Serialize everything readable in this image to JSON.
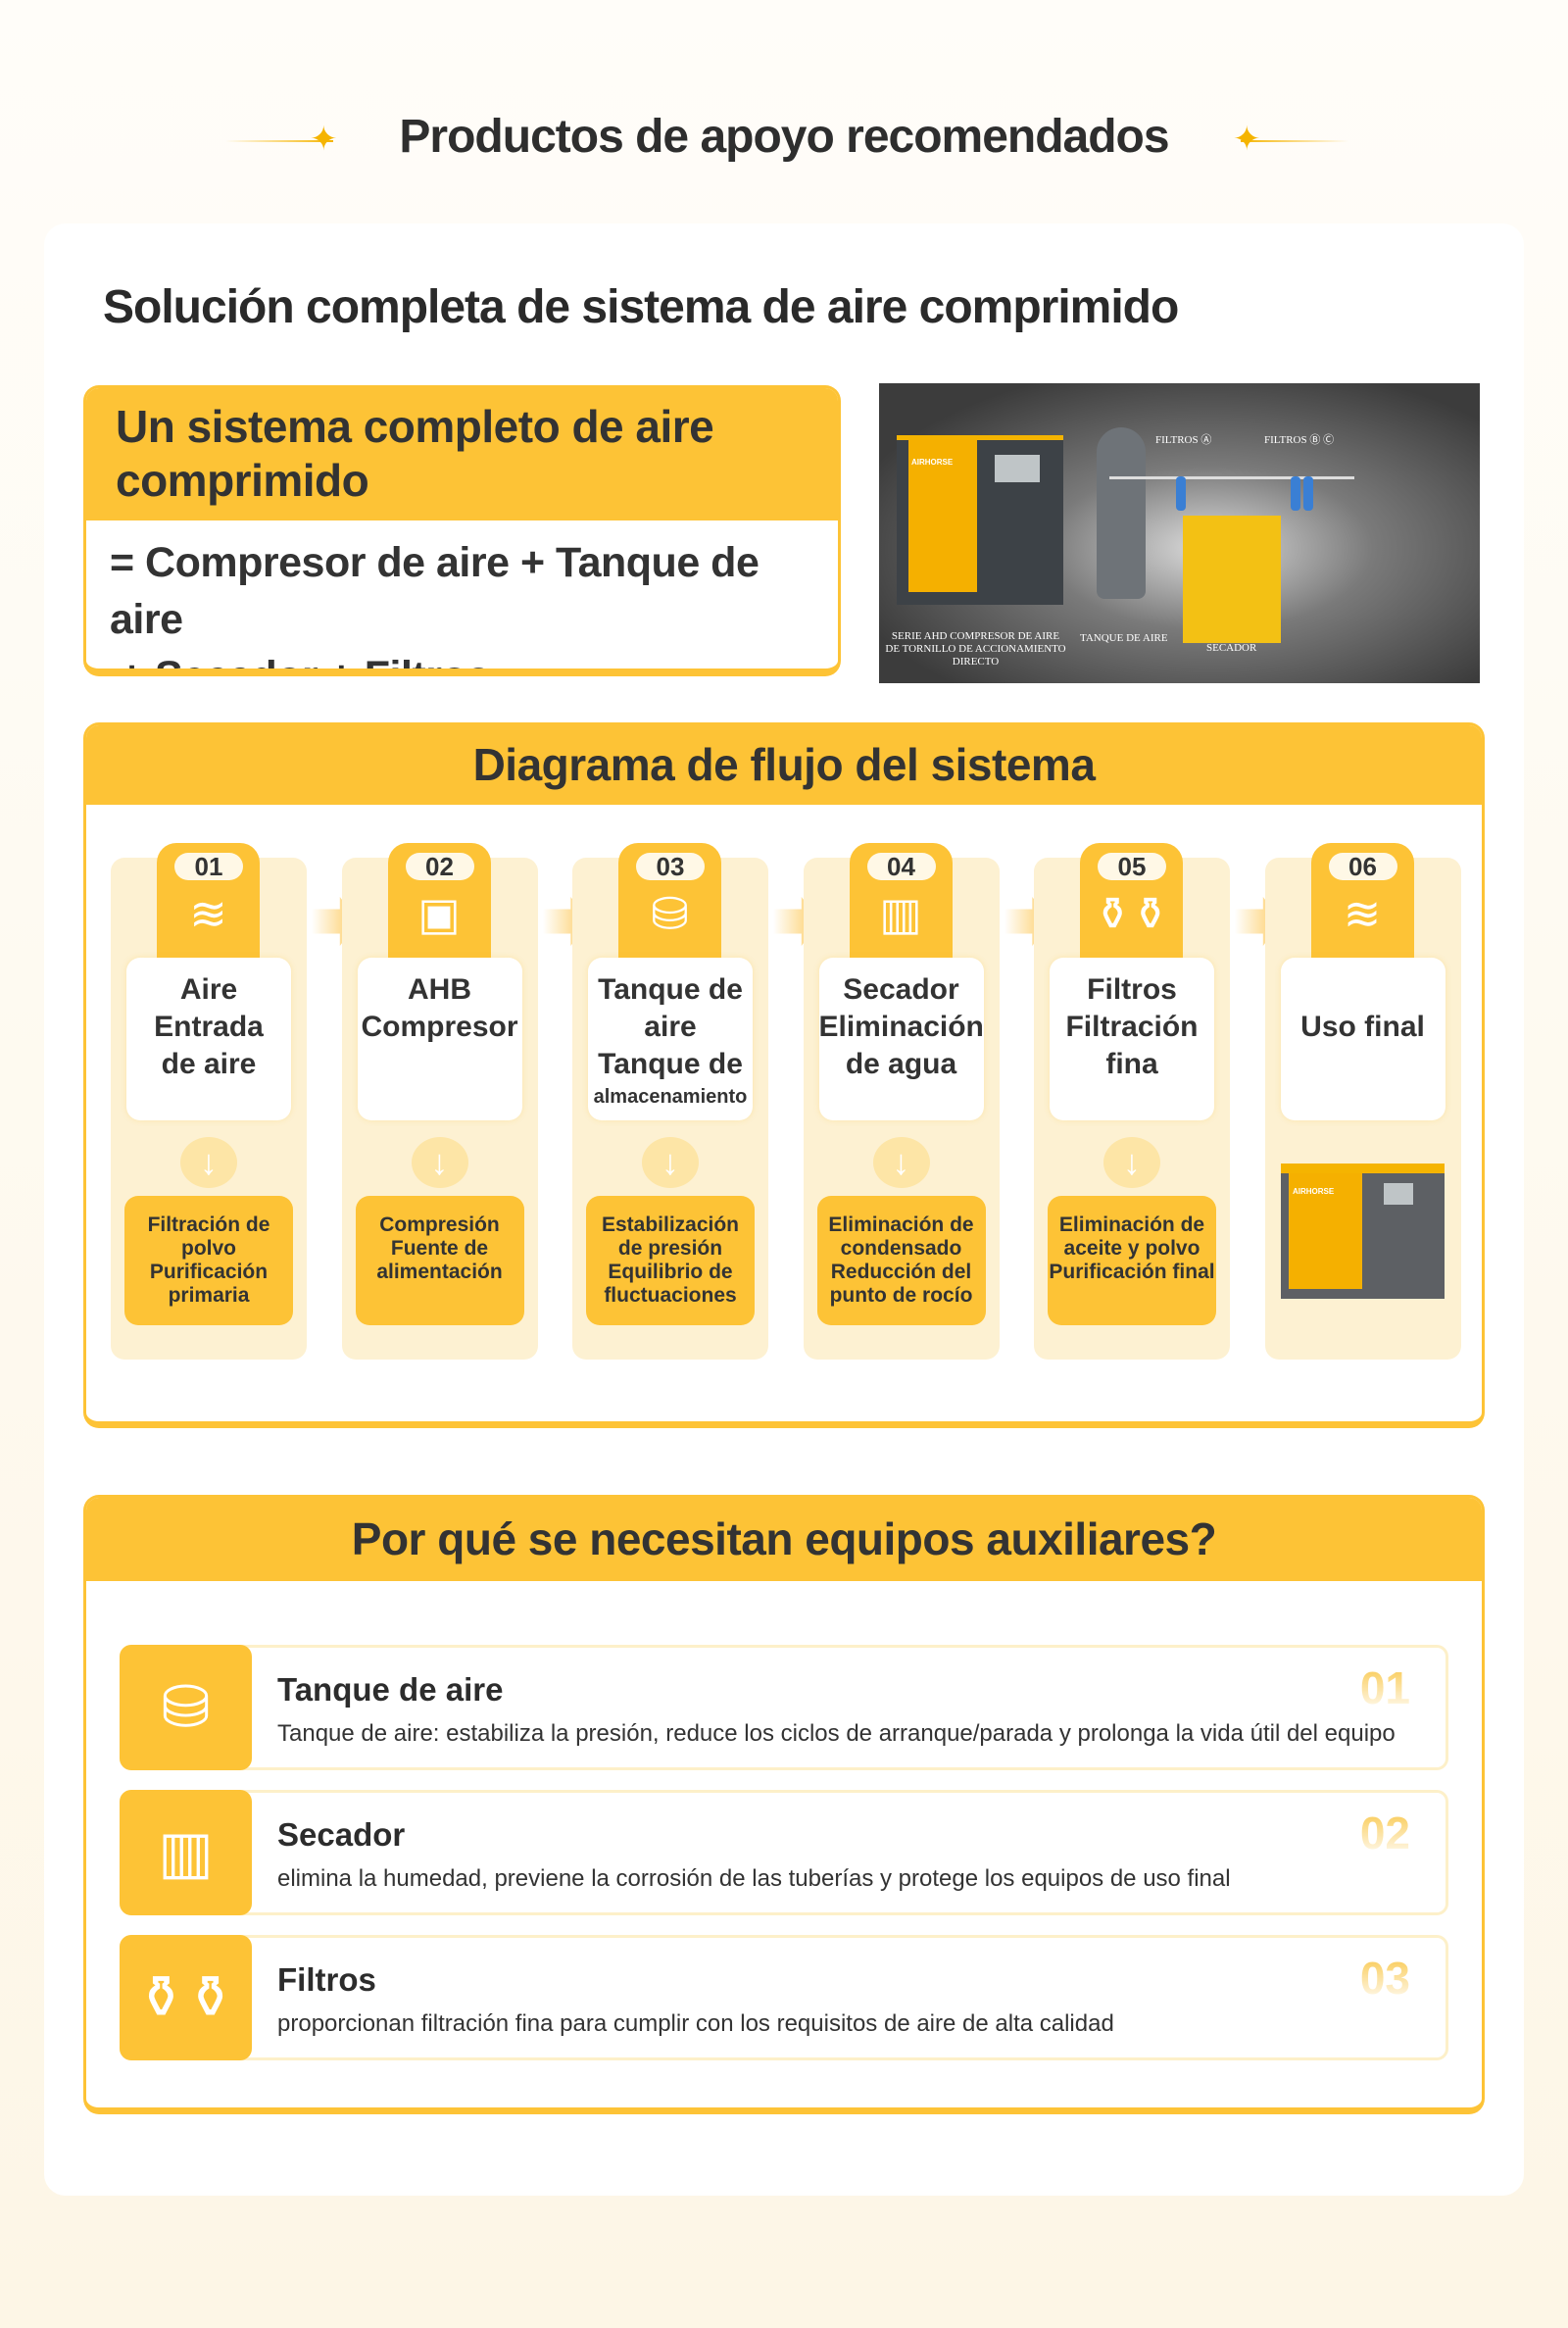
{
  "page_title": "Productos de apoyo recomendados",
  "heading": "Solución completa de sistema de aire comprimido",
  "equation": {
    "title": "Un sistema completo de aire comprimido",
    "line1": "= Compresor de aire + Tanque de aire",
    "line2": "+ Secador + Filtros"
  },
  "photo": {
    "brand": "AIRHORSE",
    "labels": {
      "filters_a": "FILTROS Ⓐ",
      "filters_bc": "FILTROS Ⓑ Ⓒ",
      "compressor": "SERIE AHD  COMPRESOR DE AIRE DE TORNILLO DE ACCIONAMIENTO DIRECTO",
      "tank": "TANQUE DE AIRE",
      "dryer": "SECADOR"
    }
  },
  "flow": {
    "title": "Diagrama de flujo del sistema",
    "steps": [
      {
        "num": "01",
        "icon": "air-intake-icon",
        "glyph": "≋",
        "name": [
          "Aire",
          "Entrada",
          "de aire"
        ],
        "small": "",
        "desc": [
          "Filtración de",
          "polvo",
          "Purificación",
          "primaria"
        ]
      },
      {
        "num": "02",
        "icon": "compressor-icon",
        "glyph": "▣",
        "name": [
          "AHB",
          "Compresor"
        ],
        "small": "",
        "desc": [
          "Compresión",
          "Fuente de",
          "alimentación"
        ]
      },
      {
        "num": "03",
        "icon": "tank-icon",
        "glyph": "⛁",
        "name": [
          "Tanque de",
          "aire",
          "Tanque de"
        ],
        "small": "almacenamiento",
        "desc": [
          "Estabilización",
          "de presión",
          "Equilibrio de",
          "fluctuaciones"
        ]
      },
      {
        "num": "04",
        "icon": "dryer-icon",
        "glyph": "▥",
        "name": [
          "Secador",
          "Eliminación",
          "de agua"
        ],
        "small": "",
        "desc": [
          "Eliminación de",
          "condensado",
          "Reducción del",
          "punto de rocío"
        ]
      },
      {
        "num": "05",
        "icon": "filters-icon",
        "glyph": "⚱⚱",
        "name": [
          "Filtros",
          "Filtración",
          "fina"
        ],
        "small": "",
        "desc": [
          "Eliminación de",
          "aceite y polvo",
          "Purificación final"
        ]
      },
      {
        "num": "06",
        "icon": "air-flow-icon",
        "glyph": "≋",
        "name": [
          "",
          "Uso final"
        ],
        "small": "",
        "desc": []
      }
    ]
  },
  "why": {
    "title": "Por qué se necesitan equipos auxiliares?",
    "items": [
      {
        "num": "01",
        "icon": "tank-icon",
        "glyph": "⛁",
        "title": "Tanque de aire",
        "desc": "Tanque de aire: estabiliza la presión, reduce los ciclos de arranque/parada y prolonga la vida útil del equipo"
      },
      {
        "num": "02",
        "icon": "dryer-icon",
        "glyph": "▥",
        "title": "Secador",
        "desc": "elimina la humedad, previene la corrosión de las tuberías y protege los equipos de uso final"
      },
      {
        "num": "03",
        "icon": "filters-icon",
        "glyph": "⚱⚱",
        "title": "Filtros",
        "desc": "proporcionan filtración fina para cumplir con los requisitos de aire de alta calidad"
      }
    ]
  },
  "colors": {
    "accent": "#fdc336",
    "background": "#fdf6e6",
    "column_bg": "#fdf1d2",
    "text": "#333333"
  }
}
